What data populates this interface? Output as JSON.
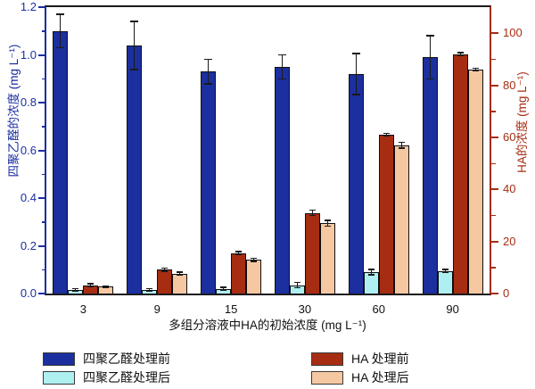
{
  "chart_data": {
    "type": "bar",
    "categories": [
      "3",
      "9",
      "15",
      "30",
      "60",
      "90"
    ],
    "series": [
      {
        "name": "四聚乙醛处理前",
        "axis": "left",
        "color": "#1b2f9f",
        "values": [
          1.1,
          1.04,
          0.93,
          0.95,
          0.92,
          0.99
        ],
        "errors": [
          0.07,
          0.1,
          0.05,
          0.05,
          0.085,
          0.09
        ]
      },
      {
        "name": "四聚乙醛处理后",
        "axis": "left",
        "color": "#aeeff2",
        "values": [
          0.015,
          0.015,
          0.02,
          0.035,
          0.09,
          0.095
        ],
        "errors": [
          0.005,
          0.005,
          0.005,
          0.01,
          0.01,
          0.005
        ]
      },
      {
        "name": "HA 处理前",
        "axis": "right",
        "color": "#a62d12",
        "values": [
          3.2,
          9.2,
          15.5,
          31,
          61,
          92
        ],
        "errors": [
          0.5,
          0.5,
          0.5,
          1,
          0.5,
          0.5
        ]
      },
      {
        "name": "HA 处理后",
        "axis": "right",
        "color": "#f6c8a2",
        "values": [
          2.6,
          7.7,
          13,
          27,
          57,
          86
        ],
        "errors": [
          0.3,
          0.5,
          0.5,
          1,
          1,
          0.5
        ]
      }
    ],
    "left_axis": {
      "title": "四聚乙醛的浓度  (mg L⁻¹)",
      "color": "#1b2f9f",
      "min": 0,
      "max": 1.2,
      "minor_step": 0.1,
      "ticks": [
        {
          "v": 0.0,
          "label": "0.0"
        },
        {
          "v": 0.2,
          "label": "0.2"
        },
        {
          "v": 0.4,
          "label": "0.4"
        },
        {
          "v": 0.6,
          "label": "0.6"
        },
        {
          "v": 0.8,
          "label": "0.8"
        },
        {
          "v": 1.0,
          "label": "1.0"
        },
        {
          "v": 1.2,
          "label": "1.2"
        }
      ]
    },
    "right_axis": {
      "title": "HA的浓度  (mg L⁻¹)",
      "color": "#a62d12",
      "min": 0,
      "max": 110,
      "minor_step": 10,
      "ticks": [
        {
          "v": 0,
          "label": "0"
        },
        {
          "v": 20,
          "label": "20"
        },
        {
          "v": 40,
          "label": "40"
        },
        {
          "v": 60,
          "label": "60"
        },
        {
          "v": 80,
          "label": "80"
        },
        {
          "v": 100,
          "label": "100"
        }
      ]
    },
    "x_axis": {
      "title": "多组分溶液中HA的初始浓度 (mg L⁻¹)"
    },
    "legend_position": "bottom",
    "grid": false
  }
}
